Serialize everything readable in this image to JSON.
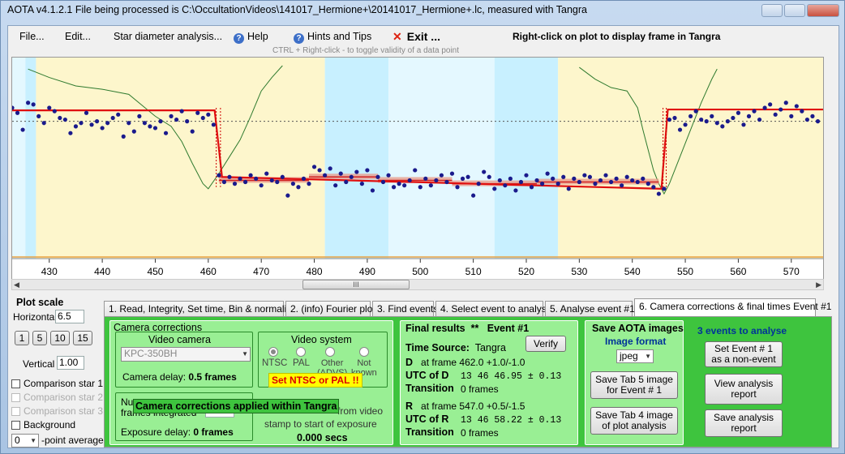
{
  "title": "AOTA v4.1.2.1   File being processed is C:\\OccultationVideos\\141017_Hermione+\\20141017_Hermione+.lc, measured with Tangra",
  "menu": {
    "file": "File...",
    "edit": "Edit...",
    "star_diameter": "Star diameter analysis...",
    "help": "Help",
    "hints": "Hints and Tips",
    "exit": "Exit ..."
  },
  "right_click_hint": "Right-click on plot to display frame in Tangra",
  "ctrl_hint": "CTRL + Right-click  -  to toggle validity of a data point",
  "plot": {
    "scroll_grip": "III"
  },
  "chart_data": {
    "type": "scatter",
    "x_ticks": [
      430,
      440,
      450,
      460,
      470,
      480,
      490,
      500,
      510,
      520,
      530,
      540,
      550,
      560,
      570
    ],
    "xlim": [
      423,
      576
    ],
    "ylim": [
      0,
      1
    ],
    "grid": false,
    "background_bands": [
      {
        "from": 423,
        "to": 425.5,
        "color": "#e4f8ff"
      },
      {
        "from": 425.5,
        "to": 427.5,
        "color": "#c8f0ff"
      },
      {
        "from": 427.5,
        "to": 482,
        "color": "#fdf6cc"
      },
      {
        "from": 482,
        "to": 494,
        "color": "#c8f0ff"
      },
      {
        "from": 494,
        "to": 505,
        "color": "#e4f8ff"
      },
      {
        "from": 505,
        "to": 514,
        "color": "#e4f8ff"
      },
      {
        "from": 514,
        "to": 520,
        "color": "#c8f0ff"
      },
      {
        "from": 520,
        "to": 526,
        "color": "#c8f0ff"
      },
      {
        "from": 526,
        "to": 576,
        "color": "#fdf6cc"
      }
    ],
    "baseline_level": 0.67,
    "model_lightcurve": [
      [
        423,
        0.735
      ],
      [
        461.2,
        0.735
      ],
      [
        462.6,
        0.34
      ],
      [
        545.5,
        0.27
      ],
      [
        546.7,
        0.74
      ],
      [
        576,
        0.74
      ]
    ],
    "series": [
      {
        "values": [
          [
            423,
            0.75
          ],
          [
            424,
            0.72
          ],
          [
            425,
            0.62
          ],
          [
            426,
            0.78
          ],
          [
            427,
            0.77
          ],
          [
            428,
            0.7
          ],
          [
            429,
            0.66
          ],
          [
            430,
            0.75
          ],
          [
            431,
            0.73
          ],
          [
            432,
            0.69
          ],
          [
            433,
            0.68
          ],
          [
            434,
            0.6
          ],
          [
            435,
            0.64
          ],
          [
            436,
            0.66
          ],
          [
            437,
            0.72
          ],
          [
            438,
            0.65
          ],
          [
            439,
            0.67
          ],
          [
            440,
            0.63
          ],
          [
            441,
            0.66
          ],
          [
            442,
            0.69
          ],
          [
            443,
            0.71
          ],
          [
            444,
            0.58
          ],
          [
            445,
            0.66
          ],
          [
            446,
            0.61
          ],
          [
            447,
            0.7
          ],
          [
            448,
            0.66
          ],
          [
            449,
            0.64
          ],
          [
            450,
            0.63
          ],
          [
            451,
            0.67
          ],
          [
            452,
            0.6
          ],
          [
            453,
            0.7
          ],
          [
            454,
            0.68
          ],
          [
            455,
            0.73
          ],
          [
            456,
            0.67
          ],
          [
            457,
            0.61
          ],
          [
            458,
            0.72
          ],
          [
            459,
            0.69
          ],
          [
            460,
            0.71
          ],
          [
            461,
            0.65
          ],
          [
            462,
            0.35
          ],
          [
            463,
            0.31
          ],
          [
            464,
            0.34
          ],
          [
            465,
            0.3
          ],
          [
            466,
            0.33
          ],
          [
            467,
            0.31
          ],
          [
            468,
            0.35
          ],
          [
            469,
            0.33
          ],
          [
            470,
            0.29
          ],
          [
            471,
            0.36
          ],
          [
            472,
            0.32
          ],
          [
            473,
            0.31
          ],
          [
            474,
            0.34
          ],
          [
            475,
            0.23
          ],
          [
            476,
            0.3
          ],
          [
            477,
            0.28
          ],
          [
            478,
            0.33
          ],
          [
            479,
            0.3
          ],
          [
            480,
            0.4
          ],
          [
            481,
            0.38
          ],
          [
            482,
            0.35
          ],
          [
            483,
            0.39
          ],
          [
            484,
            0.29
          ],
          [
            485,
            0.36
          ],
          [
            486,
            0.31
          ],
          [
            487,
            0.34
          ],
          [
            488,
            0.37
          ],
          [
            489,
            0.3
          ],
          [
            490,
            0.38
          ],
          [
            491,
            0.26
          ],
          [
            492,
            0.34
          ],
          [
            493,
            0.31
          ],
          [
            494,
            0.35
          ],
          [
            495,
            0.28
          ],
          [
            496,
            0.3
          ],
          [
            497,
            0.29
          ],
          [
            498,
            0.32
          ],
          [
            499,
            0.38
          ],
          [
            500,
            0.28
          ],
          [
            501,
            0.33
          ],
          [
            502,
            0.29
          ],
          [
            503,
            0.32
          ],
          [
            504,
            0.35
          ],
          [
            505,
            0.31
          ],
          [
            506,
            0.36
          ],
          [
            507,
            0.28
          ],
          [
            508,
            0.33
          ],
          [
            509,
            0.34
          ],
          [
            510,
            0.23
          ],
          [
            511,
            0.3
          ],
          [
            512,
            0.37
          ],
          [
            513,
            0.34
          ],
          [
            514,
            0.27
          ],
          [
            515,
            0.32
          ],
          [
            516,
            0.29
          ],
          [
            517,
            0.33
          ],
          [
            518,
            0.26
          ],
          [
            519,
            0.31
          ],
          [
            520,
            0.35
          ],
          [
            521,
            0.28
          ],
          [
            522,
            0.32
          ],
          [
            523,
            0.3
          ],
          [
            524,
            0.36
          ],
          [
            525,
            0.33
          ],
          [
            526,
            0.3
          ],
          [
            527,
            0.34
          ],
          [
            528,
            0.27
          ],
          [
            529,
            0.33
          ],
          [
            530,
            0.31
          ],
          [
            531,
            0.35
          ],
          [
            532,
            0.34
          ],
          [
            533,
            0.3
          ],
          [
            534,
            0.32
          ],
          [
            535,
            0.35
          ],
          [
            536,
            0.31
          ],
          [
            537,
            0.33
          ],
          [
            538,
            0.29
          ],
          [
            539,
            0.34
          ],
          [
            540,
            0.32
          ],
          [
            541,
            0.31
          ],
          [
            542,
            0.33
          ],
          [
            543,
            0.3
          ],
          [
            544,
            0.28
          ],
          [
            545,
            0.24
          ],
          [
            546,
            0.27
          ],
          [
            547,
            0.68
          ],
          [
            548,
            0.69
          ],
          [
            549,
            0.62
          ],
          [
            550,
            0.65
          ],
          [
            551,
            0.7
          ],
          [
            552,
            0.73
          ],
          [
            553,
            0.68
          ],
          [
            554,
            0.67
          ],
          [
            555,
            0.7
          ],
          [
            556,
            0.66
          ],
          [
            557,
            0.64
          ],
          [
            558,
            0.67
          ],
          [
            559,
            0.69
          ],
          [
            560,
            0.72
          ],
          [
            561,
            0.65
          ],
          [
            562,
            0.7
          ],
          [
            563,
            0.73
          ],
          [
            564,
            0.68
          ],
          [
            565,
            0.75
          ],
          [
            566,
            0.77
          ],
          [
            567,
            0.71
          ],
          [
            568,
            0.74
          ],
          [
            569,
            0.78
          ],
          [
            570,
            0.7
          ],
          [
            571,
            0.76
          ],
          [
            572,
            0.73
          ],
          [
            573,
            0.68
          ],
          [
            574,
            0.7
          ],
          [
            575,
            0.67
          ]
        ]
      },
      {
        "values": [
          [
            426,
            0.98
          ],
          [
            430,
            0.93
          ],
          [
            435,
            0.88
          ],
          [
            440,
            0.86
          ],
          [
            445,
            0.83
          ],
          [
            450,
            0.7
          ],
          [
            453,
            0.64
          ],
          [
            455,
            0.55
          ],
          [
            457,
            0.42
          ],
          [
            458,
            0.36
          ],
          [
            459,
            0.3
          ],
          [
            460,
            0.27
          ],
          [
            462,
            0.36
          ],
          [
            464,
            0.46
          ],
          [
            466,
            0.56
          ],
          [
            468,
            0.7
          ],
          [
            470,
            0.85
          ],
          [
            472,
            0.93
          ],
          [
            474,
            1.0
          ]
        ]
      },
      {
        "values": [
          [
            530,
            0.99
          ],
          [
            533,
            0.92
          ],
          [
            536,
            0.87
          ],
          [
            539,
            0.85
          ],
          [
            541,
            0.75
          ],
          [
            542,
            0.62
          ],
          [
            543,
            0.5
          ],
          [
            544,
            0.38
          ],
          [
            545,
            0.3
          ],
          [
            546,
            0.24
          ],
          [
            547,
            0.3
          ],
          [
            548,
            0.38
          ],
          [
            549,
            0.46
          ],
          [
            550,
            0.54
          ],
          [
            551,
            0.62
          ],
          [
            552,
            0.7
          ],
          [
            553,
            0.78
          ],
          [
            554,
            0.85
          ],
          [
            555,
            0.92
          ],
          [
            556,
            0.98
          ]
        ]
      }
    ]
  },
  "plot_scale": {
    "title": "Plot scale",
    "horizontal_label": "Horizontal",
    "horizontal_value": "6.5",
    "buttons": [
      "1",
      "5",
      "10",
      "15"
    ],
    "vertical_label": "Vertical",
    "vertical_value": "1.00"
  },
  "comparisons": [
    "Comparison star 1",
    "Comparison star 2",
    "Comparison star 3",
    "Background"
  ],
  "point_average": {
    "value": "0",
    "label": "-point average"
  },
  "tabs": [
    "1.  Read, Integrity, Set time, Bin & normalise",
    "2. (info)  Fourier plot",
    "3. Find events",
    "4. Select event to analyse",
    "5. Analyse event #1",
    "6. Camera corrections & final times Event #1"
  ],
  "camera": {
    "title": "Camera corrections",
    "video_camera": "Video camera",
    "camera_model": "KPC-350BH",
    "camera_delay_label": "Camera delay:",
    "camera_delay_value": "0.5 frames",
    "video_system": "Video system",
    "radios": [
      "NTSC",
      "PAL",
      "Other\n(ADVS)",
      "Not\nknown"
    ],
    "set_ntsc": "Set NTSC or PAL !!",
    "frames_integrated": "frames integrated",
    "num_prefix": "Nur",
    "exposure_delay_label": "Exposure delay:",
    "exposure_delay_value": "0 frames",
    "from_video": "from video",
    "stamp_text": "stamp to start of exposure",
    "secs": "0.000 secs",
    "tooltip": "Camera corrections applied within Tangra"
  },
  "final": {
    "title": "Final results",
    "stars": "**",
    "event": "Event #1",
    "verify": "Verify",
    "time_source_label": "Time Source:",
    "time_source": "Tangra",
    "d_label": "D",
    "d_text": "at frame 462.0  +1.0/-1.0",
    "utc_d_label": "UTC of D",
    "utc_d": "13 46 46.95  ± 0.13",
    "transition_label": "Transition",
    "transition_d": "0 frames",
    "r_label": "R",
    "r_text": "at frame 547.0  +0.5/-1.5",
    "utc_r_label": "UTC of R",
    "utc_r": "13 46 58.22  ± 0.13",
    "transition_r": "0 frames"
  },
  "save": {
    "title": "Save AOTA images",
    "format_label": "Image format",
    "format_value": "jpeg",
    "btn1": "Save Tab 5 image\nfor Event # 1",
    "btn2": "Save Tab 4 image\nof plot analysis"
  },
  "events": {
    "title": "3  events to analyse",
    "btn1": "Set Event # 1\nas a non-event",
    "btn2": "View analysis\nreport",
    "btn3": "Save analysis\nreport"
  }
}
